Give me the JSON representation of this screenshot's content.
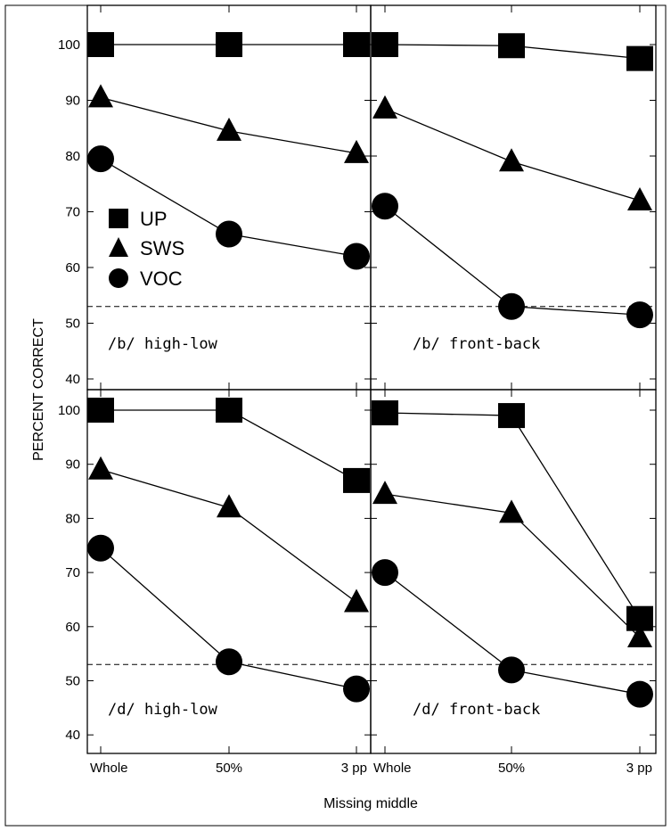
{
  "chart_data": {
    "type": "line",
    "xlabel": "Missing middle",
    "ylabel": "PERCENT CORRECT",
    "categories": [
      "Whole",
      "50%",
      "3 pp"
    ],
    "ylim": [
      37,
      103
    ],
    "yticks": [
      40,
      50,
      60,
      70,
      80,
      90,
      100
    ],
    "chance_line": 53,
    "grid": false,
    "legend": {
      "placement": "left-middle of top-left panel",
      "entries": [
        {
          "label": "UP",
          "marker": "square"
        },
        {
          "label": "SWS",
          "marker": "triangle"
        },
        {
          "label": "VOC",
          "marker": "circle"
        }
      ]
    },
    "panels": [
      {
        "label": "/b/ high-low",
        "series": [
          {
            "name": "UP",
            "marker": "square",
            "values": [
              100,
              100,
              100
            ]
          },
          {
            "name": "SWS",
            "marker": "triangle",
            "values": [
              90.5,
              84.5,
              80.5
            ]
          },
          {
            "name": "VOC",
            "marker": "circle",
            "values": [
              79.5,
              66,
              62
            ]
          }
        ]
      },
      {
        "label": "/b/ front-back",
        "series": [
          {
            "name": "UP",
            "marker": "square",
            "values": [
              100,
              99.8,
              97.5
            ]
          },
          {
            "name": "SWS",
            "marker": "triangle",
            "values": [
              88.5,
              79,
              72
            ]
          },
          {
            "name": "VOC",
            "marker": "circle",
            "values": [
              71,
              53,
              51.5
            ]
          }
        ]
      },
      {
        "label": "/d/ high-low",
        "series": [
          {
            "name": "UP",
            "marker": "square",
            "values": [
              100,
              100,
              87
            ]
          },
          {
            "name": "SWS",
            "marker": "triangle",
            "values": [
              89,
              82,
              64.5
            ]
          },
          {
            "name": "VOC",
            "marker": "circle",
            "values": [
              74.5,
              53.5,
              48.5
            ]
          }
        ]
      },
      {
        "label": "/d/ front-back",
        "series": [
          {
            "name": "UP",
            "marker": "square",
            "values": [
              99.5,
              99,
              61.5
            ]
          },
          {
            "name": "SWS",
            "marker": "triangle",
            "values": [
              84.5,
              81,
              58
            ]
          },
          {
            "name": "VOC",
            "marker": "circle",
            "values": [
              70,
              52,
              47.5
            ]
          }
        ]
      }
    ]
  }
}
